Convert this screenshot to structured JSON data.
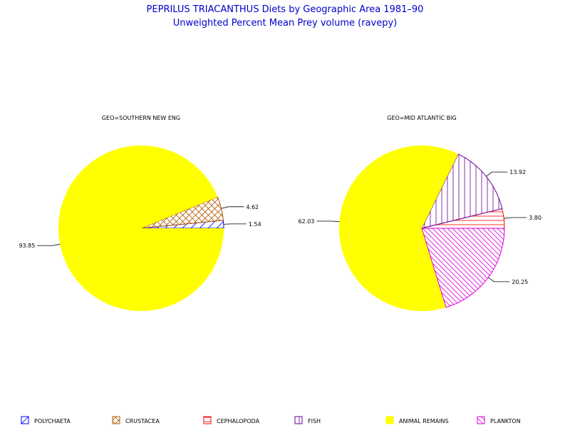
{
  "chart_data": {
    "type": "pie",
    "title": "PEPRILUS TRIACANTHUS Diets by Geographic Area 1981–90",
    "subtitle": "Unweighted Percent Mean Prey volume (ravepy)",
    "legend_placement": "bottom",
    "categories": [
      "POLYCHAETA",
      "CRUSTACEA",
      "CEPHALOPODA",
      "FISH",
      "ANIMAL REMAINS",
      "PLANKTON"
    ],
    "colors": {
      "POLYCHAETA": "#0000ff",
      "CRUSTACEA": "#b05a00",
      "CEPHALOPODA": "#ff0000",
      "FISH": "#660099",
      "ANIMAL REMAINS": "#ffff00",
      "PLANKTON": "#dd00dd"
    },
    "patterns": {
      "POLYCHAETA": "hatch-forward",
      "CRUSTACEA": "crosshatch",
      "CEPHALOPODA": "horizontal",
      "FISH": "vertical",
      "ANIMAL REMAINS": "solid",
      "PLANKTON": "hatch-back"
    },
    "pies": [
      {
        "name": "GEO=SOUTHERN NEW ENG",
        "slices": [
          {
            "category": "POLYCHAETA",
            "value": 1.54,
            "label": "1.54"
          },
          {
            "category": "CRUSTACEA",
            "value": 4.62,
            "label": "4.62"
          },
          {
            "category": "ANIMAL REMAINS",
            "value": 93.85,
            "label": "93.85"
          }
        ]
      },
      {
        "name": "GEO=MID ATLANTIC BIG",
        "slices": [
          {
            "category": "CEPHALOPODA",
            "value": 3.8,
            "label": "3.80"
          },
          {
            "category": "FISH",
            "value": 13.92,
            "label": "13.92"
          },
          {
            "category": "ANIMAL REMAINS",
            "value": 62.03,
            "label": "62.03"
          },
          {
            "category": "PLANKTON",
            "value": 20.25,
            "label": "20.25"
          }
        ]
      }
    ]
  }
}
